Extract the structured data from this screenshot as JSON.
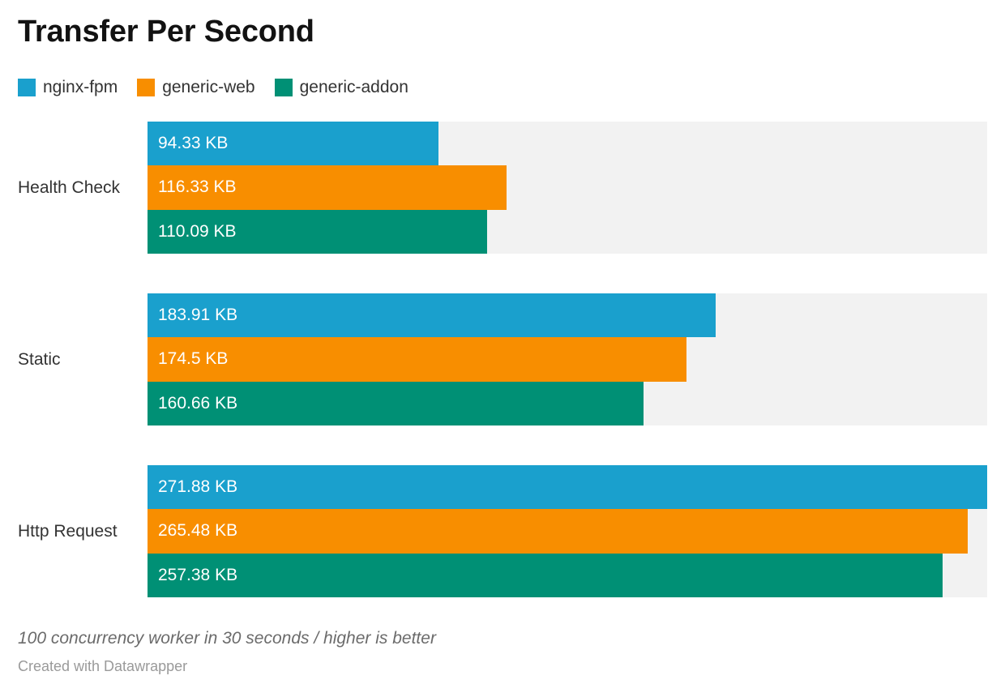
{
  "chart_data": {
    "type": "bar",
    "orientation": "horizontal",
    "title": "Transfer Per Second",
    "unit": "KB",
    "grid": false,
    "legend_position": "top",
    "xlim": [
      0,
      271.88
    ],
    "track_color": "#F2F2F2",
    "categories": [
      "Health Check",
      "Static",
      "Http Request"
    ],
    "series": [
      {
        "name": "nginx-fpm",
        "color": "#1AA0CD",
        "values": [
          94.33,
          183.91,
          271.88
        ],
        "display": [
          "94.33 KB",
          "183.91 KB",
          "271.88 KB"
        ]
      },
      {
        "name": "generic-web",
        "color": "#F88E00",
        "values": [
          116.33,
          174.5,
          265.48
        ],
        "display": [
          "116.33 KB",
          "174.5 KB",
          "265.48 KB"
        ]
      },
      {
        "name": "generic-addon",
        "color": "#009075",
        "values": [
          110.09,
          160.66,
          257.38
        ],
        "display": [
          "110.09 KB",
          "160.66 KB",
          "257.38 KB"
        ]
      }
    ]
  },
  "footer": {
    "note": "100 concurrency worker in 30 seconds / higher is better",
    "credit": "Created with Datawrapper"
  }
}
